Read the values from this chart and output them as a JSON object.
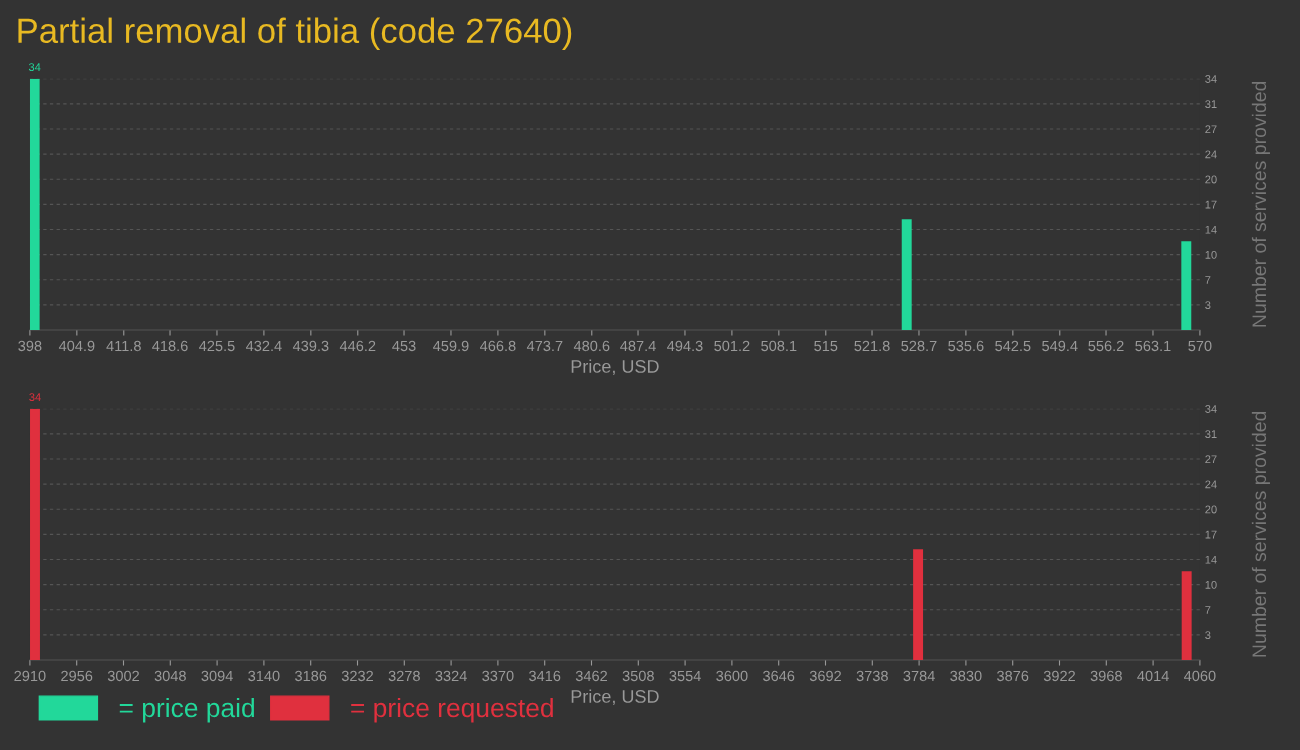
{
  "chart_data": [
    {
      "type": "bar",
      "title": "Partial removal of tibia (code 27640)",
      "xlabel": "Price, USD",
      "ylabel": "Number of services provided",
      "x": [
        398.7,
        526.9,
        568.0
      ],
      "series": [
        {
          "name": "= price paid",
          "color": "#22d89a",
          "values": [
            34,
            15,
            12
          ],
          "value_labels": [
            "34",
            null,
            null
          ]
        }
      ],
      "xlim": [
        398,
        570
      ],
      "xticks": [
        398,
        404.9,
        411.8,
        418.6,
        425.5,
        432.4,
        439.3,
        446.2,
        453,
        459.9,
        466.8,
        473.7,
        480.6,
        487.4,
        494.3,
        501.2,
        508.1,
        515,
        521.8,
        528.7,
        535.6,
        542.5,
        549.4,
        556.2,
        563.1,
        570
      ],
      "ylim": [
        0,
        34
      ],
      "yticks": [
        {
          "value": 3.4,
          "label": "3"
        },
        {
          "value": 6.8,
          "label": "7"
        },
        {
          "value": 10.2,
          "label": "10"
        },
        {
          "value": 13.6,
          "label": "14"
        },
        {
          "value": 17,
          "label": "17"
        },
        {
          "value": 20.4,
          "label": "20"
        },
        {
          "value": 23.8,
          "label": "24"
        },
        {
          "value": 27.2,
          "label": "27"
        },
        {
          "value": 30.6,
          "label": "31"
        },
        {
          "value": 34,
          "label": "34"
        }
      ],
      "grid": "y",
      "legend": "bottom left"
    },
    {
      "type": "bar",
      "xlabel": "Price, USD",
      "ylabel": "Number of services provided",
      "x": [
        2915,
        3783,
        4047
      ],
      "series": [
        {
          "name": "= price requested",
          "color": "#e0303e",
          "values": [
            34,
            15,
            12
          ],
          "value_labels": [
            "34",
            null,
            null
          ]
        }
      ],
      "xlim": [
        2910,
        4060
      ],
      "xticks": [
        2910,
        2956,
        3002,
        3048,
        3094,
        3140,
        3186,
        3232,
        3278,
        3324,
        3370,
        3416,
        3462,
        3508,
        3554,
        3600,
        3646,
        3692,
        3738,
        3784,
        3830,
        3876,
        3922,
        3968,
        4014,
        4060
      ],
      "ylim": [
        0,
        34
      ],
      "yticks": [
        {
          "value": 3.4,
          "label": "3"
        },
        {
          "value": 6.8,
          "label": "7"
        },
        {
          "value": 10.2,
          "label": "10"
        },
        {
          "value": 13.6,
          "label": "14"
        },
        {
          "value": 17,
          "label": "17"
        },
        {
          "value": 20.4,
          "label": "20"
        },
        {
          "value": 23.8,
          "label": "24"
        },
        {
          "value": 27.2,
          "label": "27"
        },
        {
          "value": 30.6,
          "label": "31"
        },
        {
          "value": 34,
          "label": "34"
        }
      ],
      "grid": "y",
      "legend": "bottom left"
    }
  ]
}
